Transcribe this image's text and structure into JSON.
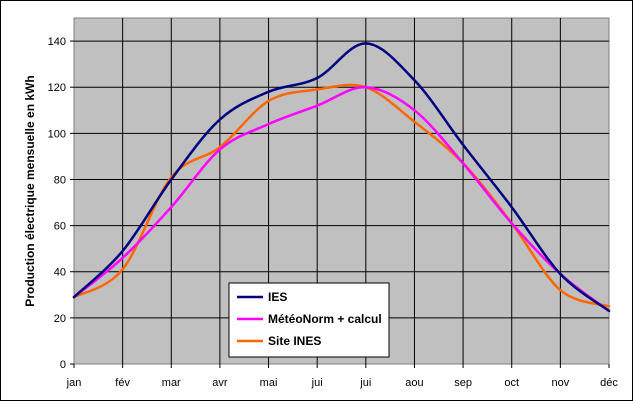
{
  "chart_data": {
    "type": "line",
    "title": "",
    "xlabel": "",
    "ylabel": "Production électrique mensuelle en kWh",
    "ylim": [
      0,
      150
    ],
    "yticks": [
      0,
      20,
      40,
      60,
      80,
      100,
      120,
      140
    ],
    "grid": true,
    "legend_position": "bottom-center",
    "categories": [
      "jan",
      "fév",
      "mar",
      "avr",
      "mai",
      "jui",
      "jui",
      "aou",
      "sep",
      "oct",
      "nov",
      "déc"
    ],
    "series": [
      {
        "name": "IES",
        "color": "#000080",
        "values": [
          29,
          49,
          80,
          106,
          118,
          124,
          139,
          123,
          95,
          68,
          39,
          23
        ]
      },
      {
        "name": "MétéoNorm + calcul",
        "color": "#ff00ff",
        "values": [
          29,
          46,
          68,
          93,
          104,
          112,
          120,
          110,
          87,
          61,
          39,
          23
        ]
      },
      {
        "name": "Site INES",
        "color": "#ff6600",
        "values": [
          29,
          41,
          81,
          94,
          114,
          119,
          120,
          105,
          87,
          61,
          32,
          25
        ]
      }
    ]
  }
}
